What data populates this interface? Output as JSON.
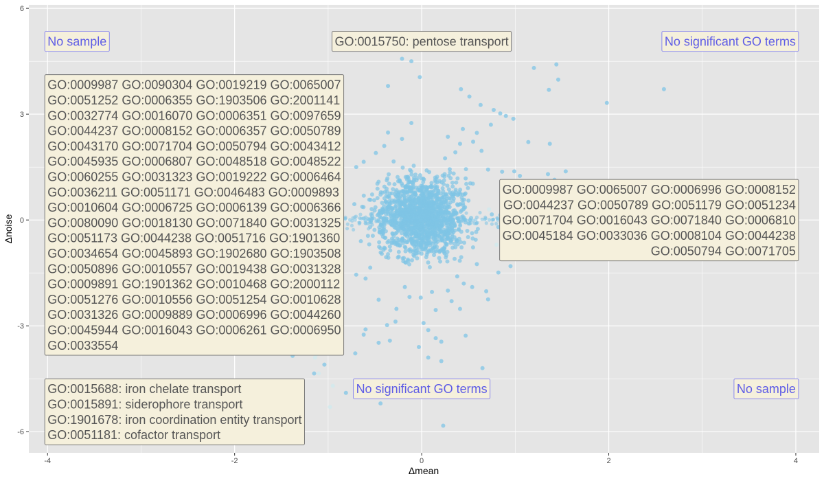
{
  "chart_data": {
    "type": "scatter",
    "xlabel": "Δmean",
    "ylabel": "Δnoise",
    "xlim": [
      -4.2,
      4.25
    ],
    "ylim": [
      -6.6,
      6.1
    ],
    "x_ticks": [
      -4,
      -2,
      0,
      2,
      4
    ],
    "y_ticks": [
      -6,
      -3,
      0,
      3,
      6
    ],
    "x_tick_labels": [
      "-4",
      "-2",
      "0",
      "2",
      "4"
    ],
    "y_tick_labels": [
      "-6",
      "-3",
      "0",
      "3",
      "6"
    ],
    "grid": true,
    "colors": {
      "panel_background": "#e5e5e5",
      "grid": "#ffffff",
      "points": "#7fc4e6",
      "faded_points": "#d3e9ec",
      "annotation_fill": "#f5f0dc",
      "annotation_border_dark": "#777777",
      "annotation_border_blue": "#8a88ee",
      "annotation_text_dark": "#555555",
      "annotation_text_blue": "#5e5ce6"
    },
    "points": [
      [
        -0.21,
        4.57
      ],
      [
        -0.11,
        4.5
      ],
      [
        -0.02,
        4.05
      ],
      [
        -0.36,
        3.8
      ],
      [
        0.42,
        3.71
      ],
      [
        0.51,
        3.5
      ],
      [
        0.63,
        3.26
      ],
      [
        0.77,
        3.12
      ],
      [
        0.84,
        3.02
      ],
      [
        0.9,
        2.95
      ],
      [
        0.98,
        2.87
      ],
      [
        1.2,
        4.31
      ],
      [
        1.44,
        4.41
      ],
      [
        1.46,
        3.98
      ],
      [
        1.36,
        3.69
      ],
      [
        1.98,
        3.32
      ],
      [
        2.59,
        3.71
      ],
      [
        1.14,
        2.21
      ],
      [
        1.37,
        2.16
      ],
      [
        0.44,
        2.58
      ],
      [
        0.59,
        2.47
      ],
      [
        0.74,
        2.7
      ],
      [
        0.28,
        2.36
      ],
      [
        0.64,
        1.96
      ],
      [
        -0.11,
        2.75
      ],
      [
        -0.36,
        2.48
      ],
      [
        -0.4,
        2.1
      ],
      [
        -0.21,
        2.3
      ],
      [
        0.71,
        1.43
      ],
      [
        0.86,
        1.37
      ],
      [
        0.99,
        1.38
      ],
      [
        1.05,
        1.25
      ],
      [
        1.35,
        1.3
      ],
      [
        1.54,
        1.38
      ],
      [
        1.42,
        1.14
      ],
      [
        0.32,
        -2.3
      ],
      [
        0.54,
        -1.9
      ],
      [
        0.69,
        -2.02
      ],
      [
        0.71,
        -2.25
      ],
      [
        -0.27,
        -2.52
      ],
      [
        -0.46,
        -2.26
      ],
      [
        -0.28,
        -2.88
      ],
      [
        0.02,
        -2.92
      ],
      [
        0.07,
        -3.12
      ],
      [
        -0.34,
        -3.42
      ],
      [
        -0.6,
        -3.1
      ],
      [
        -0.62,
        -3.25
      ],
      [
        -0.46,
        -3.48
      ],
      [
        -0.71,
        -3.78
      ],
      [
        -0.54,
        -4.65
      ],
      [
        -0.44,
        -5.2
      ],
      [
        -0.81,
        -4.9
      ],
      [
        0.47,
        -3.28
      ],
      [
        0.82,
        -1.49
      ],
      [
        0.95,
        -1.31
      ],
      [
        1.06,
        -0.78
      ],
      [
        1.07,
        -0.83
      ],
      [
        1.34,
        -0.77
      ],
      [
        1.37,
        -0.76
      ],
      [
        0.23,
        -5.83
      ],
      [
        0.5,
        -4.6
      ],
      [
        0.65,
        -4.2
      ],
      [
        0.21,
        -4.0
      ],
      [
        -0.03,
        -3.6
      ],
      [
        0.21,
        -3.45
      ],
      [
        -1.12,
        -3.58
      ],
      [
        -1.25,
        -3.75
      ],
      [
        -1.63,
        -3.48
      ],
      [
        -1.76,
        -3.51
      ],
      [
        -1.96,
        -3.58
      ],
      [
        -1.15,
        -4.35
      ],
      [
        -1.04,
        -4.1
      ],
      [
        -1.38,
        -3.85
      ],
      [
        -0.37,
        -2.98
      ],
      [
        0.07,
        -3.9
      ],
      [
        -0.7,
        1.5
      ],
      [
        -0.62,
        1.65
      ],
      [
        -0.49,
        1.9
      ],
      [
        -0.3,
        1.66
      ],
      [
        0.25,
        1.75
      ],
      [
        0.36,
        1.92
      ],
      [
        0.41,
        2.16
      ],
      [
        0.55,
        2.22
      ],
      [
        0.47,
        1.18
      ],
      [
        0.52,
        1.04
      ],
      [
        0.3,
        1.44
      ],
      [
        -0.55,
        -1.35
      ],
      [
        -0.7,
        -1.55
      ],
      [
        -0.6,
        -1.66
      ],
      [
        0.38,
        -1.6
      ],
      [
        0.45,
        -1.8
      ],
      [
        0.59,
        -1.25
      ],
      [
        0.15,
        -2.55
      ],
      [
        -0.13,
        -2.18
      ],
      [
        -0.01,
        -2.2
      ],
      [
        0.11,
        -2.04
      ],
      [
        0.28,
        -2.0
      ],
      [
        0.41,
        -2.52
      ],
      [
        0.15,
        -3.35
      ],
      [
        -0.18,
        -1.9
      ],
      [
        -0.72,
        0.45
      ],
      [
        -0.65,
        -0.6
      ],
      [
        -0.88,
        0.27
      ],
      [
        -0.94,
        -0.17
      ],
      [
        0.75,
        0.16
      ],
      [
        0.82,
        -0.2
      ],
      [
        0.9,
        0.3
      ],
      [
        0.95,
        -0.45
      ],
      [
        1.2,
        -0.3
      ],
      [
        1.4,
        -0.55
      ],
      [
        1.55,
        -0.6
      ],
      [
        -1.2,
        0.3
      ],
      [
        -1.5,
        0.2
      ],
      [
        -1.8,
        0.18
      ],
      [
        -2.2,
        0.1
      ],
      [
        -2.6,
        0.05
      ],
      [
        -3.0,
        0.05
      ],
      [
        -3.3,
        0.0
      ],
      [
        -1.3,
        -0.2
      ],
      [
        -1.6,
        -0.35
      ],
      [
        -1.9,
        -0.55
      ],
      [
        -2.3,
        -0.7
      ],
      [
        -2.5,
        -0.9
      ],
      [
        -1.4,
        -1.0
      ],
      [
        -1.1,
        -0.9
      ]
    ],
    "faded_points": [
      [
        -1.12,
        -3.8
      ],
      [
        -1.14,
        -3.9
      ],
      [
        -1.1,
        -4.35
      ],
      [
        -0.95,
        -4.7
      ],
      [
        -1.48,
        -5.7
      ],
      [
        -1.27,
        -5.5
      ],
      [
        -0.98,
        -5.3
      ],
      [
        0.72,
        0.3
      ],
      [
        1.05,
        0.12
      ],
      [
        1.25,
        0.05
      ],
      [
        1.5,
        0.0
      ],
      [
        1.8,
        -0.1
      ],
      [
        2.1,
        -0.2
      ],
      [
        2.4,
        -0.22
      ],
      [
        2.7,
        -0.25
      ],
      [
        3.0,
        -0.28
      ],
      [
        3.25,
        -0.3
      ],
      [
        3.55,
        -0.33
      ],
      [
        0.8,
        -0.7
      ],
      [
        1.3,
        -0.6
      ],
      [
        1.8,
        -0.5
      ],
      [
        -1.45,
        0.6
      ],
      [
        -1.1,
        0.28
      ],
      [
        -1.9,
        0.55
      ]
    ],
    "dense_core": {
      "cx": 0.0,
      "cy": 0.1,
      "rx": 0.42,
      "ry": 1.0
    },
    "dense_band": {
      "x_from": -3.2,
      "x_to": 3.6,
      "y_center": 0.0,
      "half_width": 0.35
    }
  },
  "annotations": [
    {
      "id": "top-left",
      "style": "blue",
      "align": "left",
      "anchor_x": -4.0,
      "anchor_y": 5.35,
      "lines": [
        "No sample"
      ]
    },
    {
      "id": "top-center",
      "style": "dark",
      "align": "center",
      "anchor_x": 0.0,
      "anchor_y": 5.35,
      "lines": [
        "GO:0015750: pentose transport"
      ]
    },
    {
      "id": "top-right",
      "style": "blue",
      "align": "right",
      "anchor_x": 4.0,
      "anchor_y": 5.35,
      "lines": [
        "No significant GO terms"
      ]
    },
    {
      "id": "middle-left",
      "style": "dark",
      "align": "left",
      "anchor_x": -4.0,
      "anchor_y": 4.12,
      "lines": [
        "GO:0009987 GO:0090304 GO:0019219 GO:0065007",
        "GO:0051252 GO:0006355 GO:1903506 GO:2001141",
        "GO:0032774 GO:0016070 GO:0006351 GO:0097659",
        "GO:0044237 GO:0008152 GO:0006357 GO:0050789",
        "GO:0043170 GO:0071704 GO:0050794 GO:0043412",
        "GO:0045935 GO:0006807 GO:0048518 GO:0048522",
        "GO:0060255 GO:0031323 GO:0019222 GO:0006464",
        "GO:0036211 GO:0051171 GO:0046483 GO:0009893",
        "GO:0010604 GO:0006725 GO:0006139 GO:0006366",
        "GO:0080090 GO:0018130 GO:0071840 GO:0031325",
        "GO:0051173 GO:0044238 GO:0051716 GO:1901360",
        "GO:0034654 GO:0045893 GO:1902680 GO:1903508",
        "GO:0050896 GO:0010557 GO:0019438 GO:0031328",
        "GO:0009891 GO:1901362 GO:0010468 GO:2000112",
        "GO:0051276 GO:0010556 GO:0051254 GO:0010628",
        "GO:0031326 GO:0009889 GO:0006996 GO:0044260",
        "GO:0045944 GO:0016043 GO:0006261 GO:0006950",
        "GO:0033554"
      ]
    },
    {
      "id": "middle-right",
      "style": "dark",
      "align": "right",
      "anchor_x": 4.0,
      "anchor_y": 1.15,
      "lines": [
        "GO:0009987 GO:0065007 GO:0006996 GO:0008152",
        "GO:0044237 GO:0050789 GO:0051179 GO:0051234",
        "GO:0071704 GO:0016043 GO:0071840 GO:0006810",
        "GO:0045184 GO:0033036 GO:0008104 GO:0044238",
        "GO:0050794 GO:0071705"
      ]
    },
    {
      "id": "bottom-left",
      "style": "dark",
      "align": "left",
      "anchor_x": -4.0,
      "anchor_y": -4.5,
      "lines": [
        "GO:0015688: iron chelate transport",
        "GO:0015891: siderophore transport",
        "GO:1901678: iron coordination entity transport",
        "GO:0051181: cofactor transport"
      ]
    },
    {
      "id": "bottom-center",
      "style": "blue",
      "align": "center",
      "anchor_x": 0.0,
      "anchor_y": -4.5,
      "lines": [
        "No significant GO terms"
      ]
    },
    {
      "id": "bottom-right",
      "style": "blue",
      "align": "right",
      "anchor_x": 4.0,
      "anchor_y": -4.5,
      "lines": [
        "No sample"
      ]
    }
  ]
}
